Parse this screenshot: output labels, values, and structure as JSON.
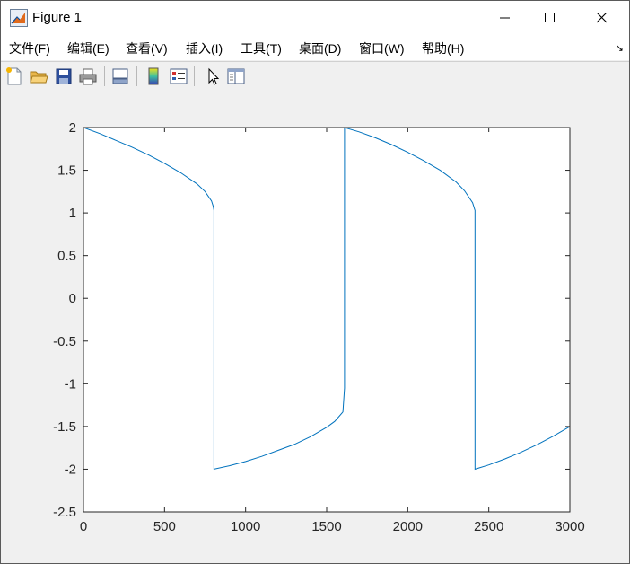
{
  "window": {
    "title": "Figure 1",
    "icon": "matlab-figure-icon",
    "controls": [
      "minimize-icon",
      "maximize-icon",
      "close-icon"
    ]
  },
  "menubar": {
    "items": [
      "文件(F)",
      "编辑(E)",
      "查看(V)",
      "插入(I)",
      "工具(T)",
      "桌面(D)",
      "窗口(W)",
      "帮助(H)"
    ],
    "overflow_icon": "dock-arrow-icon"
  },
  "toolbar": {
    "icons": [
      "new-figure-icon",
      "open-file-icon",
      "save-icon",
      "print-icon",
      "link-plot-icon",
      "insert-colorbar-icon",
      "insert-legend-icon",
      "edit-plot-icon",
      "property-inspector-icon"
    ]
  },
  "chart_data": {
    "type": "line",
    "title": "",
    "xlabel": "",
    "ylabel": "",
    "xlim": [
      0,
      3000
    ],
    "ylim": [
      -2.5,
      2
    ],
    "xticks": [
      "0",
      "500",
      "1000",
      "1500",
      "2000",
      "2500",
      "3000"
    ],
    "yticks": [
      "2",
      "1.5",
      "1",
      "0.5",
      "0",
      "-0.5",
      "-1",
      "-1.5",
      "-2",
      "-2.5"
    ],
    "grid": false,
    "line_color": "#0072bd",
    "series": [
      {
        "x": [
          0,
          100,
          200,
          300,
          400,
          500,
          600,
          700,
          750,
          790,
          800,
          805,
          805,
          900,
          1000,
          1100,
          1200,
          1300,
          1400,
          1500,
          1550,
          1600,
          1610,
          1610,
          1700,
          1800,
          1900,
          2000,
          2100,
          2200,
          2300,
          2350,
          2400,
          2415,
          2415,
          2500,
          2600,
          2700,
          2800,
          2900,
          3000
        ],
        "y": [
          2.0,
          1.93,
          1.85,
          1.77,
          1.68,
          1.58,
          1.47,
          1.34,
          1.25,
          1.14,
          1.08,
          1.03,
          -2.0,
          -1.96,
          -1.91,
          -1.85,
          -1.78,
          -1.71,
          -1.62,
          -1.51,
          -1.44,
          -1.33,
          -1.05,
          2.0,
          1.95,
          1.88,
          1.8,
          1.71,
          1.61,
          1.5,
          1.36,
          1.26,
          1.12,
          1.03,
          -2.0,
          -1.95,
          -1.88,
          -1.8,
          -1.71,
          -1.61,
          -1.5
        ]
      }
    ]
  }
}
